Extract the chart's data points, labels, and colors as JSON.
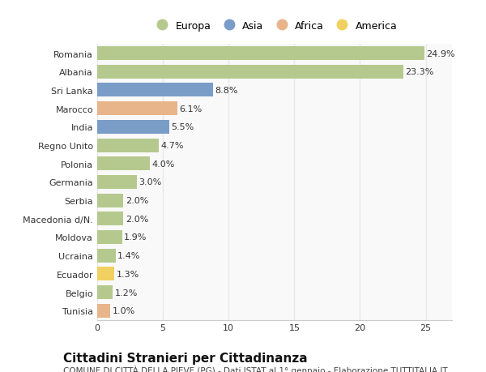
{
  "categories": [
    "Tunisia",
    "Belgio",
    "Ecuador",
    "Ucraina",
    "Moldova",
    "Macedonia d/N.",
    "Serbia",
    "Germania",
    "Polonia",
    "Regno Unito",
    "India",
    "Marocco",
    "Sri Lanka",
    "Albania",
    "Romania"
  ],
  "values": [
    1.0,
    1.2,
    1.3,
    1.4,
    1.9,
    2.0,
    2.0,
    3.0,
    4.0,
    4.7,
    5.5,
    6.1,
    8.8,
    23.3,
    24.9
  ],
  "continents": [
    "Africa",
    "Europa",
    "America",
    "Europa",
    "Europa",
    "Europa",
    "Europa",
    "Europa",
    "Europa",
    "Europa",
    "Asia",
    "Africa",
    "Asia",
    "Europa",
    "Europa"
  ],
  "colors": {
    "Europa": "#b5c98e",
    "Asia": "#7a9dc8",
    "Africa": "#e8b48a",
    "America": "#f0d060"
  },
  "background_color": "#ffffff",
  "plot_bg_color": "#f9f9f9",
  "grid_color": "#e8e8e8",
  "xlim": [
    0,
    27
  ],
  "xticks": [
    0,
    5,
    10,
    15,
    20,
    25
  ],
  "bar_height": 0.75,
  "label_fontsize": 8,
  "tick_fontsize": 8,
  "title": "Cittadini Stranieri per Cittadinanza",
  "subtitle": "COMUNE DI CITTÀ DELLA PIEVE (PG) - Dati ISTAT al 1° gennaio - Elaborazione TUTTITALIA.IT",
  "title_fontsize": 11,
  "subtitle_fontsize": 7.5,
  "legend_order": [
    "Europa",
    "Asia",
    "Africa",
    "America"
  ],
  "legend_fontsize": 9
}
